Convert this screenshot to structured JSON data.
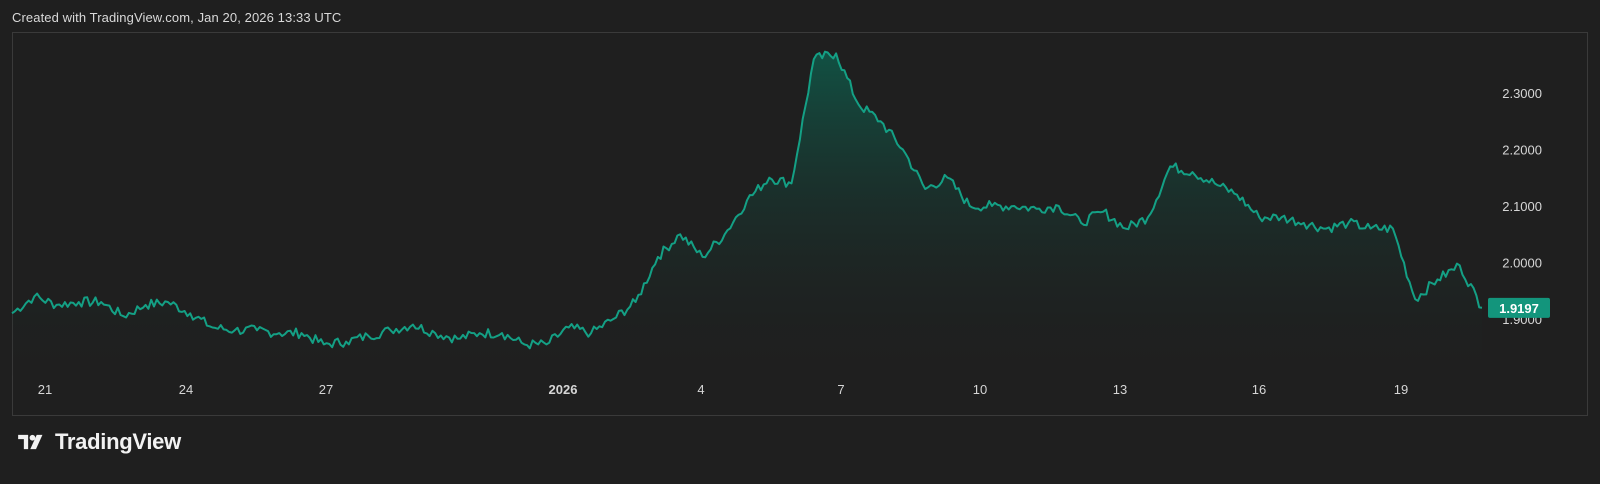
{
  "header": {
    "caption": "Created with TradingView.com, Jan 20, 2026 13:33 UTC"
  },
  "brand": {
    "name": "TradingView",
    "logo_icon": "tradingview-logo-icon"
  },
  "colors": {
    "background": "#1f1f1f",
    "line": "#14a085",
    "area_top": "#0f5a4a",
    "last_price_badge": "#13957c",
    "axis_text": "#d6d6d6"
  },
  "chart_data": {
    "type": "area",
    "title": "",
    "xlabel": "",
    "ylabel": "",
    "x_ticks": [
      "21",
      "24",
      "27",
      "2026",
      "4",
      "7",
      "10",
      "13",
      "16",
      "19"
    ],
    "x_tick_bold": [
      "2026"
    ],
    "y_ticks": [
      "2.3000",
      "2.2000",
      "2.1000",
      "2.0000",
      "1.9000"
    ],
    "ylim": [
      1.82,
      2.42
    ],
    "last_value": "1.9197",
    "grid": false,
    "legend": "none",
    "x_dates": [
      "Dec 20",
      "Dec 20",
      "Dec 21",
      "Dec 21",
      "Dec 22",
      "Dec 22",
      "Dec 23",
      "Dec 23",
      "Dec 24",
      "Dec 24",
      "Dec 25",
      "Dec 25",
      "Dec 26",
      "Dec 26",
      "Dec 27",
      "Dec 27",
      "Dec 28",
      "Dec 28",
      "Dec 29",
      "Dec 29",
      "Dec 30",
      "Dec 30",
      "Dec 31",
      "Dec 31",
      "Jan 1",
      "Jan 1",
      "Jan 2",
      "Jan 2",
      "Jan 3",
      "Jan 3",
      "Jan 4",
      "Jan 4",
      "Jan 5",
      "Jan 5",
      "Jan 6",
      "Jan 6",
      "Jan 6",
      "Jan 7",
      "Jan 7",
      "Jan 7",
      "Jan 8",
      "Jan 8",
      "Jan 9",
      "Jan 9",
      "Jan 10",
      "Jan 10",
      "Jan 11",
      "Jan 11",
      "Jan 12",
      "Jan 12",
      "Jan 13",
      "Jan 13",
      "Jan 14",
      "Jan 14",
      "Jan 15",
      "Jan 15",
      "Jan 16",
      "Jan 16",
      "Jan 17",
      "Jan 17",
      "Jan 18",
      "Jan 18",
      "Jan 19",
      "Jan 19",
      "Jan 19",
      "Jan 20",
      "Jan 20"
    ],
    "series": [
      {
        "values": [
          1.91,
          1.94,
          1.925,
          1.93,
          1.93,
          1.905,
          1.925,
          1.93,
          1.91,
          1.885,
          1.88,
          1.88,
          1.875,
          1.875,
          1.855,
          1.86,
          1.87,
          1.88,
          1.89,
          1.875,
          1.865,
          1.875,
          1.875,
          1.855,
          1.855,
          1.885,
          1.875,
          1.9,
          1.93,
          2.01,
          2.05,
          2.01,
          2.05,
          2.11,
          2.15,
          2.14,
          2.36,
          2.37,
          2.28,
          2.25,
          2.2,
          2.13,
          2.15,
          2.1,
          2.1,
          2.1,
          2.095,
          2.1,
          2.07,
          2.09,
          2.06,
          2.08,
          2.17,
          2.16,
          2.14,
          2.12,
          2.08,
          2.08,
          2.07,
          2.06,
          2.07,
          2.06,
          2.06,
          1.935,
          1.97,
          1.995,
          1.92
        ]
      }
    ]
  }
}
